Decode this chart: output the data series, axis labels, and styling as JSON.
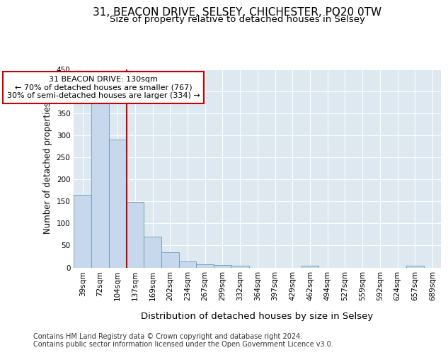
{
  "title_line1": "31, BEACON DRIVE, SELSEY, CHICHESTER, PO20 0TW",
  "title_line2": "Size of property relative to detached houses in Selsey",
  "xlabel": "Distribution of detached houses by size in Selsey",
  "ylabel": "Number of detached properties",
  "categories": [
    "39sqm",
    "72sqm",
    "104sqm",
    "137sqm",
    "169sqm",
    "202sqm",
    "234sqm",
    "267sqm",
    "299sqm",
    "332sqm",
    "364sqm",
    "397sqm",
    "429sqm",
    "462sqm",
    "494sqm",
    "527sqm",
    "559sqm",
    "592sqm",
    "624sqm",
    "657sqm",
    "689sqm"
  ],
  "values": [
    165,
    375,
    290,
    148,
    70,
    35,
    14,
    7,
    6,
    4,
    0,
    0,
    0,
    4,
    0,
    0,
    0,
    0,
    0,
    4,
    0
  ],
  "bar_color": "#c8d8ec",
  "bar_edge_color": "#6699bb",
  "vline_color": "#cc0000",
  "vline_x": 3,
  "annotation_text": "31 BEACON DRIVE: 130sqm\n← 70% of detached houses are smaller (767)\n30% of semi-detached houses are larger (334) →",
  "annotation_box_edge_color": "#cc0000",
  "annotation_box_face_color": "#ffffff",
  "ylim": [
    0,
    450
  ],
  "yticks": [
    0,
    50,
    100,
    150,
    200,
    250,
    300,
    350,
    400,
    450
  ],
  "fig_bg_color": "#ffffff",
  "plot_bg_color": "#dde8f0",
  "grid_color": "#ffffff",
  "title_fontsize": 11,
  "subtitle_fontsize": 9.5,
  "ylabel_fontsize": 8.5,
  "xlabel_fontsize": 9.5,
  "tick_fontsize": 7.5,
  "annot_fontsize": 8,
  "footer_fontsize": 7,
  "footer_line1": "Contains HM Land Registry data © Crown copyright and database right 2024.",
  "footer_line2": "Contains public sector information licensed under the Open Government Licence v3.0."
}
